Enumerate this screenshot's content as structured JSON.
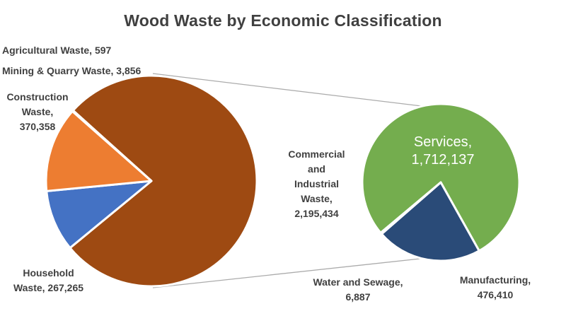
{
  "title": "Wood Waste by Economic Classification",
  "labels": {
    "agricultural": "Agricultural Waste, 597",
    "mining": "Mining & Quarry Waste, 3,856",
    "construction": "Construction\nWaste,\n370,358",
    "household": "Household\nWaste, 267,265",
    "commercial": "Commercial\nand\nIndustrial\nWaste,\n2,195,434",
    "services": "Services,\n1,712,137",
    "water": "Water and Sewage,\n6,887",
    "manufacturing": "Manufacturing,\n476,410"
  },
  "colors": {
    "title_text": "#404040",
    "label_text": "#404040",
    "services_text": "#FFFFFF",
    "connector": "#ABABAB",
    "slice_border": "#FFFFFF"
  },
  "chart_data": {
    "type": "pie-of-pie",
    "title": "Wood Waste by Economic Classification",
    "legend": "none",
    "data_labels": "category name, value",
    "main_pie": {
      "start_angle_deg": 312,
      "slices": [
        {
          "label": "Commercial and Industrial Waste",
          "value": 2195434,
          "color": "#9E4A12"
        },
        {
          "label": "Household Waste",
          "value": 267265,
          "color": "#4472C4"
        },
        {
          "label": "Construction Waste",
          "value": 370358,
          "color": "#ED7D31"
        },
        {
          "label": "Mining & Quarry Waste",
          "value": 3856,
          "color": "#A5A5A5"
        },
        {
          "label": "Agricultural Waste",
          "value": 597,
          "color": "#FFC000"
        }
      ]
    },
    "secondary_pie": {
      "detail_of": "Commercial and Industrial Waste",
      "start_angle_deg": 230,
      "slices": [
        {
          "label": "Services",
          "value": 1712137,
          "color": "#74AD4E"
        },
        {
          "label": "Manufacturing",
          "value": 476410,
          "color": "#2A4B78"
        },
        {
          "label": "Water and Sewage",
          "value": 6887,
          "color": "#9DC3E6"
        }
      ]
    }
  }
}
